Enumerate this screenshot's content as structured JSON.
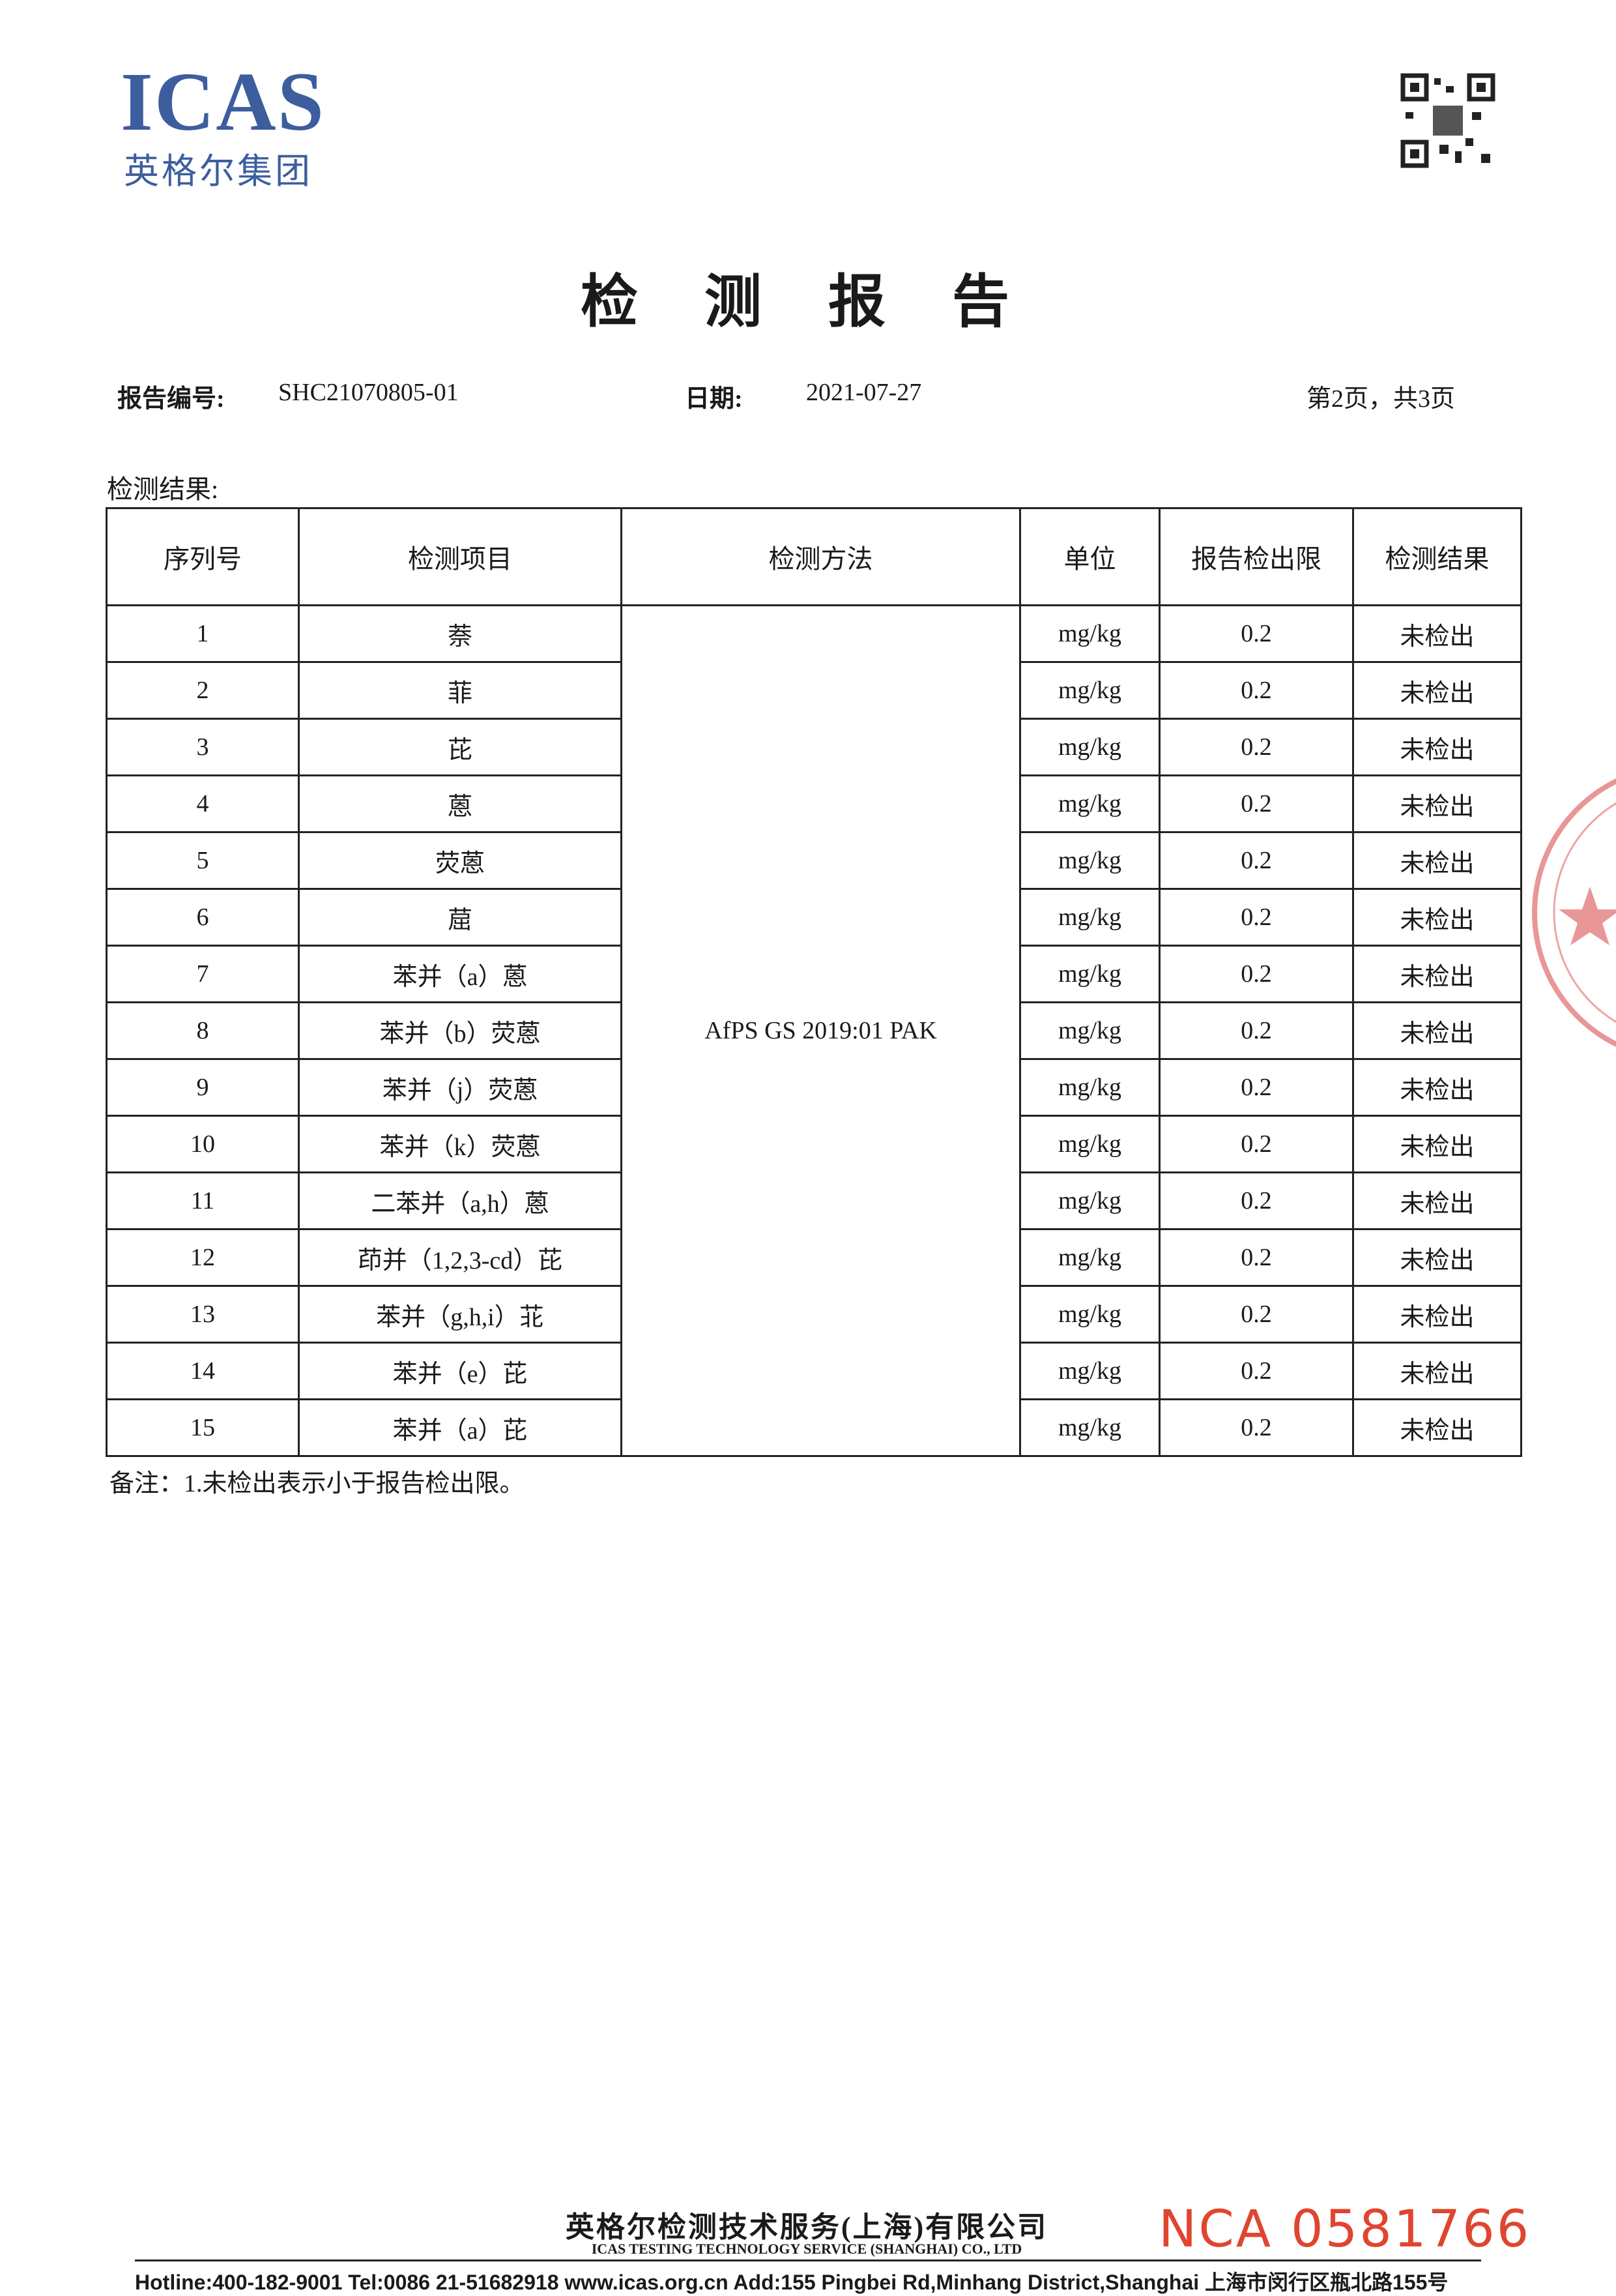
{
  "header": {
    "logo": "ICAS",
    "logo_sub": "英格尔集团",
    "title": "检 测 报 告",
    "report_no_label": "报告编号:",
    "report_no": "SHC21070805-01",
    "date_label": "日期:",
    "date": "2021-07-27",
    "page": "第2页，共3页"
  },
  "section": "检测结果:",
  "table": {
    "headers": [
      "序列号",
      "检测项目",
      "检测方法",
      "单位",
      "报告检出限",
      "检测结果"
    ],
    "method": "AfPS GS 2019:01 PAK",
    "rows": [
      [
        1,
        "萘",
        "mg/kg",
        0.2,
        "未检出"
      ],
      [
        2,
        "菲",
        "mg/kg",
        0.2,
        "未检出"
      ],
      [
        3,
        "芘",
        "mg/kg",
        0.2,
        "未检出"
      ],
      [
        4,
        "蒽",
        "mg/kg",
        0.2,
        "未检出"
      ],
      [
        5,
        "荧蒽",
        "mg/kg",
        0.2,
        "未检出"
      ],
      [
        6,
        "䓛",
        "mg/kg",
        0.2,
        "未检出"
      ],
      [
        7,
        "苯并（a）蒽",
        "mg/kg",
        0.2,
        "未检出"
      ],
      [
        8,
        "苯并（b）荧蒽",
        "mg/kg",
        0.2,
        "未检出"
      ],
      [
        9,
        "苯并（j）荧蒽",
        "mg/kg",
        0.2,
        "未检出"
      ],
      [
        10,
        "苯并（k）荧蒽",
        "mg/kg",
        0.2,
        "未检出"
      ],
      [
        11,
        "二苯并（a,h）蒽",
        "mg/kg",
        0.2,
        "未检出"
      ],
      [
        12,
        "茚并（1,2,3-cd）芘",
        "mg/kg",
        0.2,
        "未检出"
      ],
      [
        13,
        "苯并（g,h,i）苝",
        "mg/kg",
        0.2,
        "未检出"
      ],
      [
        14,
        "苯并（e）芘",
        "mg/kg",
        0.2,
        "未检出"
      ],
      [
        15,
        "苯并（a）芘",
        "mg/kg",
        0.2,
        "未检出"
      ]
    ]
  },
  "note": "备注：1.未检出表示小于报告检出限。",
  "footer": {
    "company_cn": "英格尔检测技术服务(上海)有限公司",
    "company_en": "ICAS TESTING TECHNOLOGY SERVICE (SHANGHAI) CO., LTD",
    "nca": "NCA 0581766",
    "hotline": "Hotline:400-182-9001  Tel:0086 21-51682918  www.icas.org.cn   Add:155 Pingbei Rd,Minhang District,Shanghai 上海市闵行区瓶北路155号"
  }
}
